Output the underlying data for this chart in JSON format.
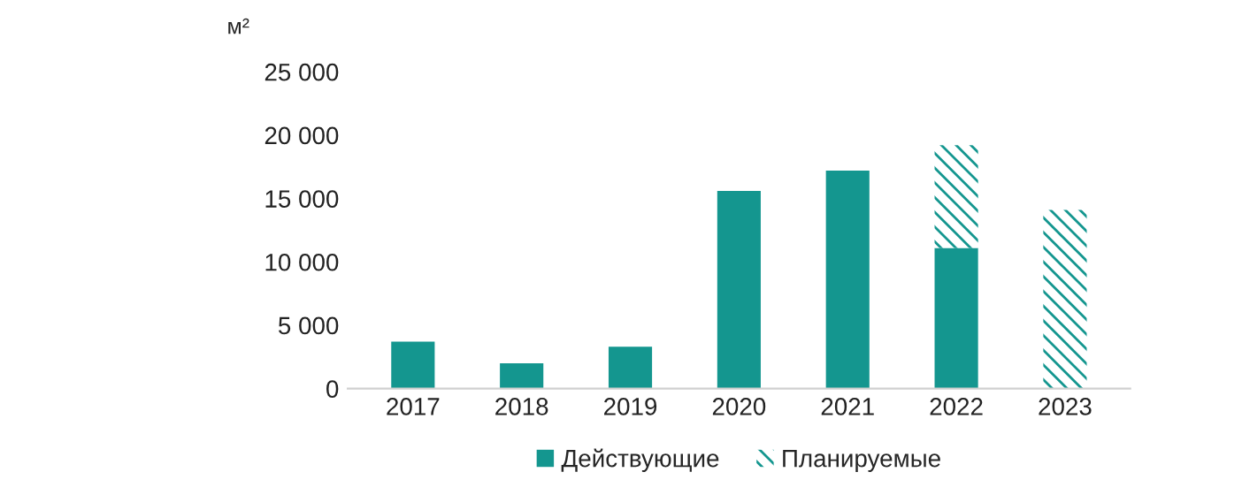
{
  "chart_data": {
    "type": "bar",
    "stacked": true,
    "ylabel": "м²",
    "categories": [
      "2017",
      "2018",
      "2019",
      "2020",
      "2021",
      "2022",
      "2023"
    ],
    "series": [
      {
        "name": "Действующие",
        "color": "#14968f",
        "values": [
          3700,
          2000,
          3300,
          15600,
          17200,
          11100,
          null
        ]
      },
      {
        "name": "Планируемые",
        "color": "#14968f",
        "values": [
          null,
          null,
          null,
          null,
          null,
          8100,
          14100
        ]
      }
    ],
    "ylim": [
      0,
      25000
    ],
    "yticks": [
      {
        "value": 0,
        "label": "0"
      },
      {
        "value": 5000,
        "label": "5 000"
      },
      {
        "value": 10000,
        "label": "10 000"
      },
      {
        "value": 15000,
        "label": "15 000"
      },
      {
        "value": 20000,
        "label": "20 000"
      },
      {
        "value": 25000,
        "label": "25 000"
      }
    ],
    "grid": false,
    "legend": "bottom"
  }
}
